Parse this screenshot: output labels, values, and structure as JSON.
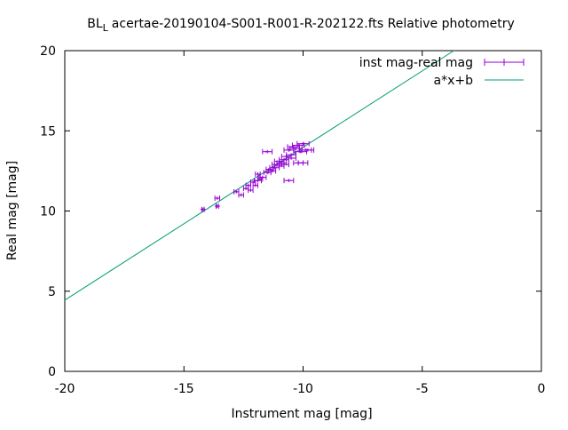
{
  "chart_data": {
    "type": "scatter",
    "title_main": "BL",
    "title_sub": "L",
    "title_rest": "acertae-20190104-S001-R001-R-202122.fts Relative photometry",
    "xlabel": "Instrument mag [mag]",
    "ylabel": "Real mag [mag]",
    "xlim": [
      -20,
      0
    ],
    "ylim": [
      0,
      20
    ],
    "x_ticks": [
      -20,
      -15,
      -10,
      -5,
      0
    ],
    "y_ticks": [
      0,
      5,
      10,
      15,
      20
    ],
    "x_tick_labels": [
      "-20",
      "-15",
      "-10",
      "-5",
      "0"
    ],
    "y_tick_labels": [
      "0",
      "5",
      "10",
      "15",
      "20"
    ],
    "grid": false,
    "legend_position": "top-right",
    "series": [
      {
        "name": "inst mag-real mag",
        "kind": "points_with_errorbars",
        "color": "#9400d3",
        "x": [
          -14.2,
          -13.6,
          -13.6,
          -12.8,
          -12.6,
          -12.4,
          -12.3,
          -12.2,
          -12.1,
          -12.0,
          -11.9,
          -11.9,
          -11.8,
          -11.7,
          -11.5,
          -11.4,
          -11.3,
          -11.2,
          -11.1,
          -11.0,
          -11.0,
          -10.9,
          -10.8,
          -10.8,
          -10.7,
          -10.6,
          -10.5,
          -10.6,
          -10.5,
          -10.4,
          -10.3,
          -10.2,
          -10.1,
          -10.0,
          -9.9,
          -9.8,
          -10.2,
          -10.0,
          -11.5
        ],
        "y": [
          10.1,
          10.8,
          10.3,
          11.2,
          11.0,
          11.4,
          11.6,
          11.3,
          11.8,
          11.6,
          11.9,
          12.3,
          12.0,
          12.1,
          12.4,
          12.6,
          12.5,
          12.7,
          12.9,
          12.8,
          13.1,
          13.0,
          13.2,
          12.9,
          13.4,
          11.9,
          13.3,
          13.8,
          13.5,
          14.0,
          13.9,
          14.1,
          13.7,
          14.2,
          13.8,
          13.8,
          13.0,
          13.0,
          13.7
        ],
        "xerr": [
          0.05,
          0.1,
          0.05,
          0.1,
          0.1,
          0.1,
          0.1,
          0.1,
          0.1,
          0.1,
          0.15,
          0.1,
          0.1,
          0.15,
          0.15,
          0.15,
          0.15,
          0.2,
          0.2,
          0.2,
          0.2,
          0.2,
          0.2,
          0.2,
          0.2,
          0.2,
          0.2,
          0.2,
          0.2,
          0.25,
          0.25,
          0.25,
          0.25,
          0.25,
          0.25,
          0.25,
          0.2,
          0.2,
          0.2
        ],
        "yerr": [
          0.05,
          0.05,
          0.05,
          0.05,
          0.05,
          0.05,
          0.05,
          0.05,
          0.05,
          0.05,
          0.05,
          0.05,
          0.05,
          0.05,
          0.05,
          0.05,
          0.05,
          0.05,
          0.05,
          0.05,
          0.05,
          0.05,
          0.05,
          0.05,
          0.05,
          0.05,
          0.05,
          0.05,
          0.05,
          0.05,
          0.05,
          0.05,
          0.05,
          0.05,
          0.05,
          0.05,
          0.05,
          0.05,
          0.05
        ]
      },
      {
        "name": "a*x+b",
        "kind": "line",
        "color": "#009e73",
        "slope": 0.953,
        "intercept": 23.5
      }
    ]
  }
}
